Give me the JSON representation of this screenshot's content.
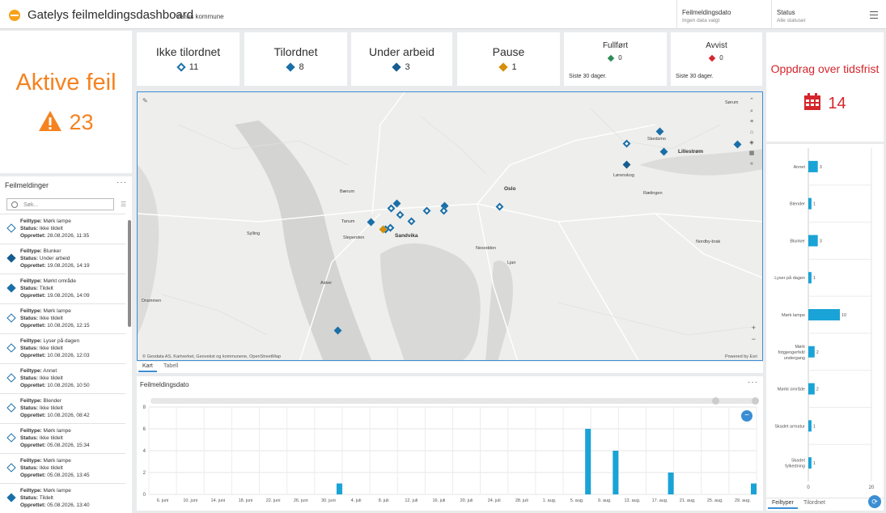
{
  "header": {
    "title": "Gatelys feilmeldingsdashboard",
    "subtitle": "Venus kommune",
    "filters": [
      {
        "title": "Feilmeldingsdato",
        "value": "Ingen data valgt"
      },
      {
        "title": "Status",
        "value": "Alle statuser"
      }
    ]
  },
  "indicators": [
    {
      "label": "Ikke tilordnet",
      "value": "11",
      "color": "#1a6fa8",
      "fill": "outline"
    },
    {
      "label": "Tilordnet",
      "value": "8",
      "color": "#1a6fa8",
      "fill": "solid"
    },
    {
      "label": "Under arbeid",
      "value": "3",
      "color": "#155d91",
      "fill": "solid"
    },
    {
      "label": "Pause",
      "value": "1",
      "color": "#d48f0c",
      "fill": "solid"
    },
    {
      "label": "Fullført",
      "value": "0",
      "color": "#2e8b57",
      "fill": "solid",
      "footer": "Siste 30 dager."
    },
    {
      "label": "Avvist",
      "value": "0",
      "color": "#d4262c",
      "fill": "solid",
      "footer": "Siste 30 dager."
    }
  ],
  "aktive_feil": {
    "label": "Aktive feil",
    "value": "23",
    "color": "#f5821f",
    "icon": "warning-triangle-icon"
  },
  "tidsfrist": {
    "label": "Oppdrag over tidsfrist",
    "value": "14",
    "color": "#d4262c",
    "icon": "calendar-icon"
  },
  "list": {
    "title": "Feilmeldinger",
    "search_placeholder": "Søk...",
    "labels": {
      "type": "Feiltype:",
      "status": "Status:",
      "created": "Opprettet:"
    },
    "items": [
      {
        "type": "Mørk lampe",
        "status": "Ikke tildelt",
        "created": "28.08.2026, 11:35",
        "fill": "outline"
      },
      {
        "type": "Blunker",
        "status": "Under arbeid",
        "created": "19.08.2026, 14:19",
        "fill": "dark"
      },
      {
        "type": "Mørkt område",
        "status": "Tildelt",
        "created": "19.08.2026, 14:09",
        "fill": "solid"
      },
      {
        "type": "Mørk lampe",
        "status": "Ikke tildelt",
        "created": "10.08.2026, 12:15",
        "fill": "outline"
      },
      {
        "type": "Lyser på dagen",
        "status": "Ikke tildelt",
        "created": "10.08.2026, 12:03",
        "fill": "outline"
      },
      {
        "type": "Annet",
        "status": "Ikke tildelt",
        "created": "10.08.2026, 10:50",
        "fill": "outline"
      },
      {
        "type": "Blender",
        "status": "Ikke tildelt",
        "created": "10.08.2026, 08:42",
        "fill": "outline"
      },
      {
        "type": "Mørk lampe",
        "status": "Ikke tildelt",
        "created": "05.08.2026, 15:34",
        "fill": "outline"
      },
      {
        "type": "Mørk lampe",
        "status": "Ikke tildelt",
        "created": "05.08.2026, 13:45",
        "fill": "outline"
      },
      {
        "type": "Mørk lampe",
        "status": "Tildelt",
        "created": "05.08.2026, 13:40",
        "fill": "solid"
      }
    ]
  },
  "map": {
    "attribution": "© Geodata AS, Kartverket, Geovekst og kommunene, OpenStreetMap",
    "powered": "Powered by Esri",
    "tabs": [
      "Kart",
      "Tabell"
    ],
    "places": [
      "Oslo",
      "Sandvika",
      "Lillestrøm",
      "Bærum",
      "Asker",
      "Skedsmo",
      "Lørenskog",
      "Rælingen",
      "Sørum",
      "Nordby-brak",
      "Nesodden",
      "Ljan",
      "Tanum",
      "Slependen",
      "Sylling",
      "Drammen"
    ]
  },
  "date_chart_title": "Feilmeldingsdato",
  "type_tabs": [
    "Feiltyper",
    "Tilordnet"
  ],
  "chart_data": [
    {
      "type": "bar",
      "title": "Feilmeldingsdato",
      "categories": [
        "6. juni",
        "10. juni",
        "14. juni",
        "18. juni",
        "22. juni",
        "26. juni",
        "30. juni",
        "4. juli",
        "8. juli",
        "12. juli",
        "16. juli",
        "20. juli",
        "24. juli",
        "28. juli",
        "1. aug.",
        "5. aug.",
        "9. aug.",
        "13. aug.",
        "17. aug.",
        "21. aug.",
        "25. aug.",
        "29. aug."
      ],
      "tick_labels": [
        "6. juni",
        "10. juni",
        "14. juni",
        "18. juni",
        "22. juni",
        "26. juni",
        "30. juni",
        "4. juli",
        "8. juli",
        "12. juli",
        "16. juli",
        "20. juli",
        "24. juli",
        "28. juli",
        "1. aug.",
        "5. aug.",
        "9. aug.",
        "13. aug.",
        "17. aug.",
        "21. aug.",
        "25. aug.",
        "29. aug."
      ],
      "series": [
        {
          "values": [
            0,
            0,
            0,
            0,
            0,
            0,
            1,
            0,
            0,
            0,
            0,
            0,
            0,
            0,
            0,
            6,
            4,
            0,
            2,
            0,
            0,
            1
          ]
        }
      ],
      "ylim": [
        0,
        8
      ],
      "yticks": [
        0,
        2,
        4,
        6,
        8
      ],
      "color": "#1aa3d6"
    },
    {
      "type": "bar",
      "orientation": "horizontal",
      "categories": [
        "Annet",
        "Blender",
        "Blunker",
        "Lyser på dagen",
        "Mørk lampe",
        "Mørk fotgjengerfelt/ undergang",
        "Mørkt område",
        "Skadet armatur",
        "Skadet fylkedning"
      ],
      "series": [
        {
          "values": [
            3,
            1,
            3,
            1,
            10,
            2,
            2,
            1,
            1
          ]
        }
      ],
      "xlim": [
        0,
        20
      ],
      "xticks": [
        0,
        20
      ],
      "color": "#1aa3d6"
    }
  ]
}
